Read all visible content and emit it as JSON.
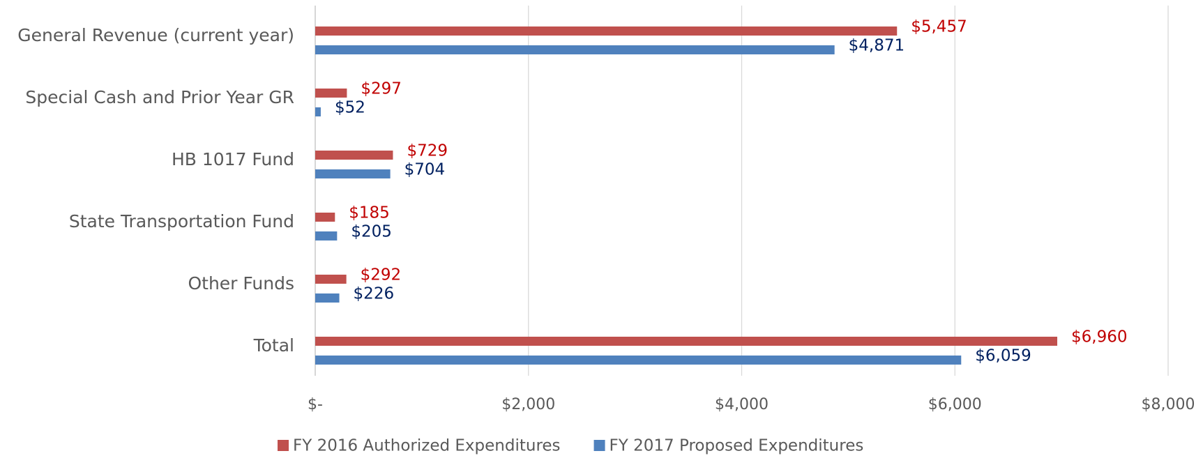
{
  "chart_data": {
    "type": "hbar",
    "categories": [
      "General Revenue (current year)",
      "Special Cash and Prior Year GR",
      "HB 1017 Fund",
      "State Transportation Fund",
      "Other Funds",
      "Total"
    ],
    "series": [
      {
        "name": "FY 2016 Authorized Expenditures",
        "color": "#c0504d",
        "label_color": "#c00000",
        "values": [
          5457,
          297,
          729,
          185,
          292,
          6960
        ],
        "value_labels": [
          "$5,457",
          "$297",
          "$729",
          "$185",
          "$292",
          "$6,960"
        ]
      },
      {
        "name": "FY 2017 Proposed Expenditures",
        "color": "#4f81bd",
        "label_color": "#002060",
        "values": [
          4871,
          52,
          704,
          205,
          226,
          6059
        ],
        "value_labels": [
          "$4,871",
          "$52",
          "$704",
          "$205",
          "$226",
          "$6,059"
        ]
      }
    ],
    "xlim": [
      0,
      8000
    ],
    "xticks": [
      {
        "value": 0,
        "label": "$-"
      },
      {
        "value": 2000,
        "label": "$2,000"
      },
      {
        "value": 4000,
        "label": "$4,000"
      },
      {
        "value": 6000,
        "label": "$6,000"
      },
      {
        "value": 8000,
        "label": "$8,000"
      }
    ],
    "grid": true,
    "legend": "bottom"
  }
}
